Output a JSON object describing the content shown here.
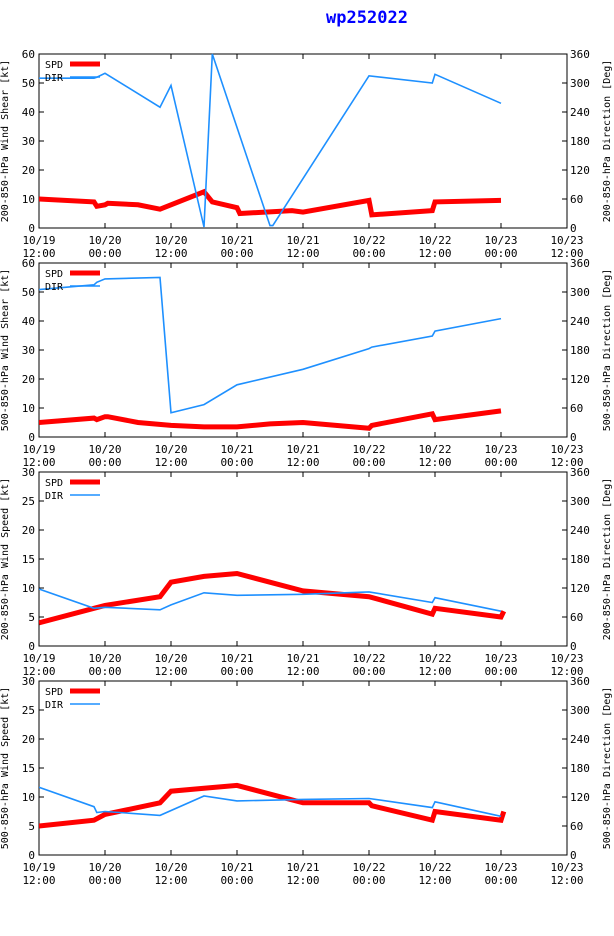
{
  "page": {
    "title": "wp252022"
  },
  "colors": {
    "spd": "#ff0000",
    "dir": "#1e90ff",
    "axis": "#000000",
    "title": "#0000ff"
  },
  "x_ticks": [
    [
      "10/19",
      "12:00"
    ],
    [
      "10/20",
      "00:00"
    ],
    [
      "10/20",
      "12:00"
    ],
    [
      "10/21",
      "00:00"
    ],
    [
      "10/21",
      "12:00"
    ],
    [
      "10/22",
      "00:00"
    ],
    [
      "10/22",
      "12:00"
    ],
    [
      "10/23",
      "00:00"
    ],
    [
      "10/23",
      "12:00"
    ]
  ],
  "chart_data": [
    {
      "type": "line",
      "ylabel_left": "200-850-hPa Wind Shear [kt]",
      "ylabel_right": "200-850-hPa Direction [Deg]",
      "ylim_left": [
        0,
        60
      ],
      "yticks_left": [
        0,
        10,
        20,
        30,
        40,
        50,
        60
      ],
      "ylim_right": [
        0,
        360
      ],
      "yticks_right": [
        0,
        60,
        120,
        180,
        240,
        300,
        360
      ],
      "xlim": [
        0,
        96
      ],
      "legend": [
        "SPD",
        "DIR"
      ],
      "series": [
        {
          "name": "SPD",
          "axis": "left",
          "x": [
            0,
            10,
            10.5,
            12,
            12.5,
            18,
            22,
            30,
            31.5,
            36,
            36.5,
            46,
            48,
            60,
            60.5,
            71.5,
            72,
            84
          ],
          "y": [
            10,
            9,
            7.5,
            8,
            8.5,
            8,
            6.5,
            12.5,
            9,
            7,
            5,
            6,
            5.5,
            9.5,
            4.5,
            6,
            9,
            9.5
          ]
        },
        {
          "name": "DIR",
          "axis": "right",
          "x": [
            0,
            10,
            10.5,
            12,
            22,
            24,
            30,
            31.5,
            42,
            42.5,
            60,
            71.5,
            72,
            84
          ],
          "y": [
            310,
            310,
            312,
            320,
            250,
            295,
            2,
            360,
            5,
            5,
            315,
            300,
            318,
            258
          ]
        }
      ]
    },
    {
      "type": "line",
      "ylabel_left": "500-850-hPa Wind Shear [kt]",
      "ylabel_right": "500-850-hPa Direction [Deg]",
      "ylim_left": [
        0,
        60
      ],
      "yticks_left": [
        0,
        10,
        20,
        30,
        40,
        50,
        60
      ],
      "ylim_right": [
        0,
        360
      ],
      "yticks_right": [
        0,
        60,
        120,
        180,
        240,
        300,
        360
      ],
      "xlim": [
        0,
        96
      ],
      "legend": [
        "SPD",
        "DIR"
      ],
      "series": [
        {
          "name": "SPD",
          "axis": "left",
          "x": [
            0,
            10,
            10.5,
            12,
            12.5,
            18,
            24,
            30,
            36,
            42,
            48,
            60,
            60.5,
            71.5,
            72,
            84
          ],
          "y": [
            5,
            6.5,
            6,
            7,
            7,
            5,
            4,
            3.5,
            3.5,
            4.5,
            5,
            3,
            4,
            8,
            6,
            9
          ]
        },
        {
          "name": "DIR",
          "axis": "right",
          "x": [
            0,
            10,
            10.5,
            12,
            22,
            24,
            30,
            36,
            48,
            60,
            60.5,
            71.5,
            72,
            84
          ],
          "y": [
            305,
            315,
            320,
            327,
            330,
            50,
            67,
            108,
            140,
            183,
            186,
            209,
            219,
            245
          ]
        }
      ]
    },
    {
      "type": "line",
      "ylabel_left": "200-850-hPa Wind Speed [kt]",
      "ylabel_right": "200-850-hPa Direction [Deg]",
      "ylim_left": [
        0,
        30
      ],
      "yticks_left": [
        0,
        5,
        10,
        15,
        20,
        25,
        30
      ],
      "ylim_right": [
        0,
        360
      ],
      "yticks_right": [
        0,
        60,
        120,
        180,
        240,
        300,
        360
      ],
      "xlim": [
        0,
        96
      ],
      "legend": [
        "SPD",
        "DIR"
      ],
      "series": [
        {
          "name": "SPD",
          "axis": "left",
          "x": [
            0,
            10,
            12,
            22,
            24,
            30,
            36,
            48,
            60,
            71.5,
            72,
            84,
            84.5
          ],
          "y": [
            4,
            6.5,
            7,
            8.5,
            11,
            12,
            12.5,
            9.5,
            8.5,
            5.5,
            6.5,
            5,
            6
          ]
        },
        {
          "name": "DIR",
          "axis": "right",
          "x": [
            0,
            10,
            12,
            22,
            24,
            30,
            36,
            48,
            60,
            71.5,
            72,
            84
          ],
          "y": [
            118,
            78,
            80,
            75,
            85,
            110,
            105,
            107,
            112,
            90,
            100,
            72
          ]
        }
      ]
    },
    {
      "type": "line",
      "ylabel_left": "500-850-hPa Wind Speed [kt]",
      "ylabel_right": "500-850-hPa Direction [Deg]",
      "ylim_left": [
        0,
        30
      ],
      "yticks_left": [
        0,
        5,
        10,
        15,
        20,
        25,
        30
      ],
      "ylim_right": [
        0,
        360
      ],
      "yticks_right": [
        0,
        60,
        120,
        180,
        240,
        300,
        360
      ],
      "xlim": [
        0,
        96
      ],
      "legend": [
        "SPD",
        "DIR"
      ],
      "series": [
        {
          "name": "SPD",
          "axis": "left",
          "x": [
            0,
            10,
            12,
            22,
            24,
            30,
            36,
            48,
            60,
            60.5,
            71.5,
            72,
            84,
            84.5
          ],
          "y": [
            5,
            6,
            7,
            9,
            11,
            11.5,
            12,
            9,
            9,
            8.5,
            6,
            7.5,
            6,
            7.5
          ]
        },
        {
          "name": "DIR",
          "axis": "right",
          "x": [
            0,
            10,
            10.5,
            12,
            22,
            30,
            36,
            48,
            60,
            71.5,
            72,
            84
          ],
          "y": [
            140,
            100,
            88,
            90,
            82,
            122,
            112,
            115,
            117,
            98,
            110,
            80
          ]
        }
      ]
    }
  ]
}
